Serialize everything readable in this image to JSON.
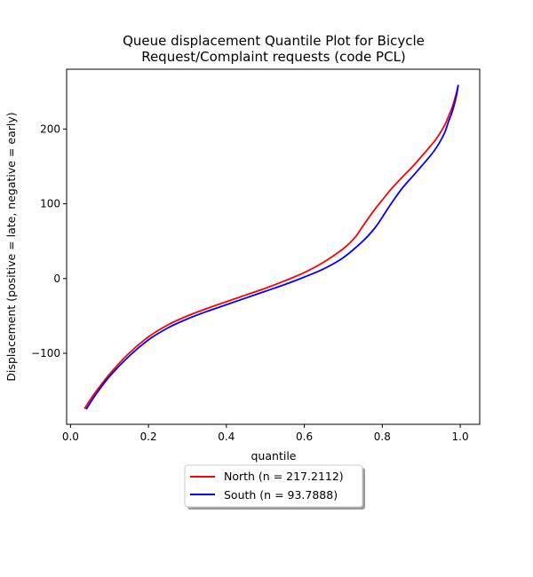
{
  "chart_data": {
    "type": "line",
    "title_lines": [
      "Queue displacement Quantile Plot for Bicycle",
      "Request/Complaint  requests (code PCL)"
    ],
    "xlabel": "quantile",
    "ylabel": "Displacement (positive = late, negative = early)",
    "xlim": [
      -0.01,
      1.05
    ],
    "ylim": [
      -195,
      280
    ],
    "xticks": [
      0.0,
      0.2,
      0.4,
      0.6,
      0.8,
      1.0
    ],
    "xtick_labels": [
      "0.0",
      "0.2",
      "0.4",
      "0.6",
      "0.8",
      "1.0"
    ],
    "yticks": [
      -100,
      0,
      100,
      200
    ],
    "ytick_labels": [
      "−100",
      "0",
      "100",
      "200"
    ],
    "grid": false,
    "legend_position": "below-center",
    "series": [
      {
        "name": "North (n = 217.2112)",
        "color": "#ff0000",
        "x": [
          0.036,
          0.06,
          0.1,
          0.15,
          0.2,
          0.25,
          0.3,
          0.35,
          0.4,
          0.45,
          0.5,
          0.55,
          0.6,
          0.65,
          0.7,
          0.73,
          0.75,
          0.78,
          0.8,
          0.82,
          0.85,
          0.88,
          0.9,
          0.92,
          0.94,
          0.96,
          0.97,
          0.98,
          0.99,
          0.995
        ],
        "y": [
          -174,
          -155,
          -128,
          -100,
          -78,
          -62,
          -50,
          -40,
          -31,
          -22,
          -13,
          -3,
          8,
          22,
          40,
          55,
          70,
          92,
          105,
          118,
          135,
          151,
          163,
          175,
          188,
          205,
          217,
          230,
          248,
          259
        ]
      },
      {
        "name": "South (n = 93.7888)",
        "color": "#0000ff",
        "x": [
          0.04,
          0.065,
          0.1,
          0.15,
          0.2,
          0.25,
          0.3,
          0.35,
          0.4,
          0.45,
          0.5,
          0.55,
          0.6,
          0.65,
          0.7,
          0.75,
          0.78,
          0.8,
          0.82,
          0.85,
          0.88,
          0.9,
          0.92,
          0.94,
          0.96,
          0.97,
          0.98,
          0.99,
          0.995
        ],
        "y": [
          -175,
          -155,
          -131,
          -104,
          -82,
          -66,
          -54,
          -44,
          -35,
          -26,
          -17,
          -8,
          2,
          13,
          28,
          50,
          67,
          82,
          98,
          120,
          138,
          150,
          162,
          176,
          195,
          210,
          224,
          244,
          259
        ]
      }
    ]
  }
}
